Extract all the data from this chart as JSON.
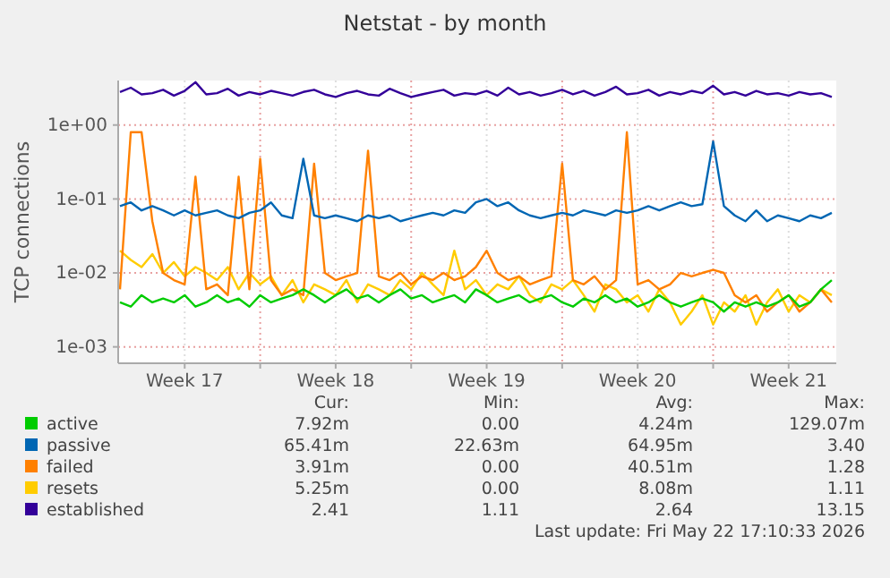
{
  "chart_data": {
    "type": "line",
    "title": "Netstat - by month",
    "ylabel": "TCP connections",
    "log": true,
    "grid": true,
    "legend": "bottom",
    "ylim": [
      0.0006,
      4
    ],
    "yticks": [
      {
        "value": 0.001,
        "label": "1e-03"
      },
      {
        "value": 0.01,
        "label": "1e-02"
      },
      {
        "value": 0.1,
        "label": "1e-01"
      },
      {
        "value": 1,
        "label": "1e+00"
      }
    ],
    "xlim": [
      "2026-04-19T10:00",
      "2026-05-22T17:00"
    ],
    "xticks": [
      {
        "value": "2026-04-22T12:00",
        "label": "Week 17"
      },
      {
        "value": "2026-04-26T00:00",
        "label": null
      },
      {
        "value": "2026-04-29T12:00",
        "label": "Week 18"
      },
      {
        "value": "2026-05-03T00:00",
        "label": null
      },
      {
        "value": "2026-05-06T12:00",
        "label": "Week 19"
      },
      {
        "value": "2026-05-10T00:00",
        "label": null
      },
      {
        "value": "2026-05-13T12:00",
        "label": "Week 20"
      },
      {
        "value": "2026-05-17T00:00",
        "label": null
      },
      {
        "value": "2026-05-20T12:00",
        "label": "Week 21"
      }
    ],
    "x": [
      "2026-04-19T12:00",
      "2026-04-20T00:00",
      "2026-04-20T12:00",
      "2026-04-21T00:00",
      "2026-04-21T12:00",
      "2026-04-22T00:00",
      "2026-04-22T12:00",
      "2026-04-23T00:00",
      "2026-04-23T12:00",
      "2026-04-24T00:00",
      "2026-04-24T12:00",
      "2026-04-25T00:00",
      "2026-04-25T12:00",
      "2026-04-26T00:00",
      "2026-04-26T12:00",
      "2026-04-27T00:00",
      "2026-04-27T12:00",
      "2026-04-28T00:00",
      "2026-04-28T12:00",
      "2026-04-29T00:00",
      "2026-04-29T12:00",
      "2026-04-30T00:00",
      "2026-04-30T12:00",
      "2026-05-01T00:00",
      "2026-05-01T12:00",
      "2026-05-02T00:00",
      "2026-05-02T12:00",
      "2026-05-03T00:00",
      "2026-05-03T12:00",
      "2026-05-04T00:00",
      "2026-05-04T12:00",
      "2026-05-05T00:00",
      "2026-05-05T12:00",
      "2026-05-06T00:00",
      "2026-05-06T12:00",
      "2026-05-07T00:00",
      "2026-05-07T12:00",
      "2026-05-08T00:00",
      "2026-05-08T12:00",
      "2026-05-09T00:00",
      "2026-05-09T12:00",
      "2026-05-10T00:00",
      "2026-05-10T12:00",
      "2026-05-11T00:00",
      "2026-05-11T12:00",
      "2026-05-12T00:00",
      "2026-05-12T12:00",
      "2026-05-13T00:00",
      "2026-05-13T12:00",
      "2026-05-14T00:00",
      "2026-05-14T12:00",
      "2026-05-15T00:00",
      "2026-05-15T12:00",
      "2026-05-16T00:00",
      "2026-05-16T12:00",
      "2026-05-17T00:00",
      "2026-05-17T12:00",
      "2026-05-18T00:00",
      "2026-05-18T12:00",
      "2026-05-19T00:00",
      "2026-05-19T12:00",
      "2026-05-20T00:00",
      "2026-05-20T12:00",
      "2026-05-21T00:00",
      "2026-05-21T12:00",
      "2026-05-22T00:00",
      "2026-05-22T12:00"
    ],
    "series": [
      {
        "name": "active",
        "color": "#00cc00",
        "values": [
          0.004,
          0.0035,
          0.005,
          0.004,
          0.0045,
          0.004,
          0.005,
          0.0035,
          0.004,
          0.005,
          0.004,
          0.0045,
          0.0035,
          0.005,
          0.004,
          0.0045,
          0.005,
          0.006,
          0.005,
          0.004,
          0.005,
          0.006,
          0.0045,
          0.005,
          0.004,
          0.005,
          0.006,
          0.0045,
          0.005,
          0.004,
          0.0045,
          0.005,
          0.004,
          0.006,
          0.005,
          0.004,
          0.0045,
          0.005,
          0.004,
          0.0045,
          0.005,
          0.004,
          0.0035,
          0.0045,
          0.004,
          0.005,
          0.004,
          0.0045,
          0.0035,
          0.004,
          0.005,
          0.004,
          0.0035,
          0.004,
          0.0045,
          0.004,
          0.003,
          0.004,
          0.0035,
          0.004,
          0.0035,
          0.004,
          0.005,
          0.0035,
          0.004,
          0.006,
          0.008
        ]
      },
      {
        "name": "passive",
        "color": "#0066b3",
        "values": [
          0.08,
          0.09,
          0.07,
          0.08,
          0.07,
          0.06,
          0.07,
          0.06,
          0.065,
          0.07,
          0.06,
          0.055,
          0.065,
          0.07,
          0.09,
          0.06,
          0.055,
          0.35,
          0.06,
          0.055,
          0.06,
          0.055,
          0.05,
          0.06,
          0.055,
          0.06,
          0.05,
          0.055,
          0.06,
          0.065,
          0.06,
          0.07,
          0.065,
          0.09,
          0.1,
          0.08,
          0.09,
          0.07,
          0.06,
          0.055,
          0.06,
          0.065,
          0.06,
          0.07,
          0.065,
          0.06,
          0.07,
          0.065,
          0.07,
          0.08,
          0.07,
          0.08,
          0.09,
          0.08,
          0.085,
          0.6,
          0.08,
          0.06,
          0.05,
          0.07,
          0.05,
          0.06,
          0.055,
          0.05,
          0.06,
          0.055,
          0.065
        ]
      },
      {
        "name": "failed",
        "color": "#ff8000",
        "values": [
          0.006,
          0.8,
          0.8,
          0.05,
          0.01,
          0.008,
          0.007,
          0.2,
          0.006,
          0.007,
          0.005,
          0.2,
          0.006,
          0.35,
          0.008,
          0.005,
          0.006,
          0.005,
          0.3,
          0.01,
          0.008,
          0.009,
          0.01,
          0.45,
          0.009,
          0.008,
          0.01,
          0.007,
          0.009,
          0.008,
          0.01,
          0.008,
          0.009,
          0.012,
          0.02,
          0.01,
          0.008,
          0.009,
          0.007,
          0.008,
          0.009,
          0.3,
          0.008,
          0.007,
          0.009,
          0.006,
          0.008,
          0.8,
          0.007,
          0.008,
          0.006,
          0.007,
          0.01,
          0.009,
          0.01,
          0.011,
          0.01,
          0.005,
          0.004,
          0.005,
          0.003,
          0.004,
          0.005,
          0.003,
          0.004,
          0.006,
          0.004
        ]
      },
      {
        "name": "resets",
        "color": "#ffcc00",
        "values": [
          0.02,
          0.015,
          0.012,
          0.018,
          0.01,
          0.014,
          0.009,
          0.012,
          0.01,
          0.008,
          0.012,
          0.006,
          0.01,
          0.007,
          0.009,
          0.005,
          0.008,
          0.004,
          0.007,
          0.006,
          0.005,
          0.008,
          0.004,
          0.007,
          0.006,
          0.005,
          0.008,
          0.006,
          0.01,
          0.007,
          0.005,
          0.02,
          0.006,
          0.008,
          0.005,
          0.007,
          0.006,
          0.009,
          0.005,
          0.004,
          0.007,
          0.006,
          0.008,
          0.005,
          0.003,
          0.007,
          0.006,
          0.004,
          0.005,
          0.003,
          0.006,
          0.004,
          0.002,
          0.003,
          0.005,
          0.002,
          0.004,
          0.003,
          0.005,
          0.002,
          0.004,
          0.006,
          0.003,
          0.005,
          0.004,
          0.006,
          0.005
        ]
      },
      {
        "name": "established",
        "color": "#330099",
        "values": [
          2.8,
          3.2,
          2.6,
          2.7,
          3.0,
          2.5,
          2.9,
          3.8,
          2.6,
          2.7,
          3.1,
          2.5,
          2.8,
          2.6,
          2.9,
          2.7,
          2.5,
          2.8,
          3.0,
          2.6,
          2.4,
          2.7,
          2.9,
          2.6,
          2.5,
          3.1,
          2.7,
          2.4,
          2.6,
          2.8,
          3.0,
          2.5,
          2.7,
          2.6,
          2.9,
          2.5,
          3.2,
          2.6,
          2.8,
          2.5,
          2.7,
          3.0,
          2.6,
          2.9,
          2.5,
          2.8,
          3.3,
          2.6,
          2.7,
          3.0,
          2.5,
          2.8,
          2.6,
          2.9,
          2.7,
          3.4,
          2.6,
          2.8,
          2.5,
          2.9,
          2.6,
          2.7,
          2.5,
          2.8,
          2.6,
          2.7,
          2.4
        ]
      }
    ],
    "annotations": [
      "Cur:",
      "Min:",
      "Avg:",
      "Max:",
      "7.92m",
      "0.00",
      "4.24m",
      "129.07m",
      "65.41m",
      "22.63m",
      "64.95m",
      "3.40",
      "3.91m",
      "0.00",
      "40.51m",
      "1.28",
      "5.25m",
      "0.00",
      "8.08m",
      "1.11",
      "2.41",
      "1.11",
      "2.64",
      "13.15",
      "Last update: Fri May 22 17:10:33 2026"
    ]
  }
}
